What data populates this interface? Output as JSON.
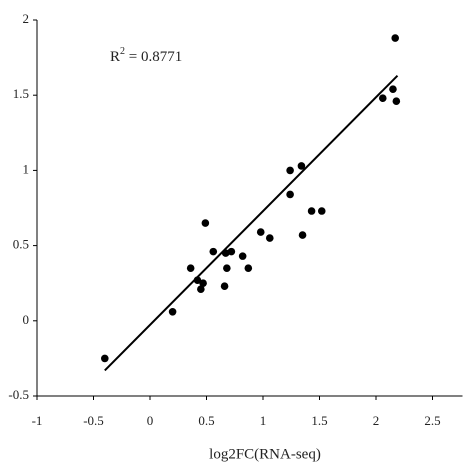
{
  "chart_data": {
    "type": "scatter",
    "annotation": [
      "R",
      "2",
      " = 0.8771"
    ],
    "xlabel": "log2FC(RNA-seq)",
    "series": [
      {
        "color": "#000000",
        "x": [
          -0.4,
          0.2,
          0.36,
          0.42,
          0.45,
          0.47,
          0.49,
          0.56,
          0.66,
          0.68,
          0.67,
          0.72,
          0.82,
          0.87,
          0.98,
          1.06,
          1.24,
          1.24,
          1.34,
          1.35,
          1.43,
          1.52,
          2.06,
          2.15,
          2.17,
          2.18
        ],
        "values": [
          -0.25,
          0.06,
          0.35,
          0.27,
          0.21,
          0.25,
          0.65,
          0.46,
          0.23,
          0.35,
          0.45,
          0.46,
          0.43,
          0.35,
          0.59,
          0.55,
          1.0,
          0.84,
          1.03,
          0.57,
          0.73,
          0.73,
          1.48,
          1.54,
          1.88,
          1.46
        ]
      }
    ],
    "trendline": {
      "x": [
        -0.4,
        2.19
      ],
      "values": [
        -0.33,
        1.63
      ],
      "color": "#000000"
    },
    "xlim": [
      -1,
      2.5
    ],
    "xticks": [
      -1,
      -0.5,
      0,
      0.5,
      1,
      1.5,
      2,
      2.5
    ],
    "ylim": [
      -0.5,
      2
    ],
    "yticks": [
      -0.5,
      0,
      0.5,
      1,
      1.5,
      2
    ]
  }
}
